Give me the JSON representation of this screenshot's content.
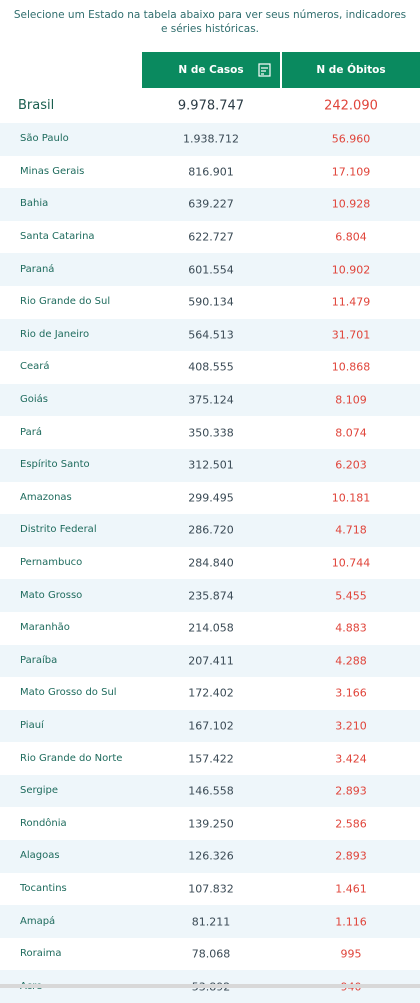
{
  "intro": "Selecione um Estado na tabela abaixo para ver seus números, indicadores e séries históricas.",
  "headers": {
    "casos": "N de Casos",
    "obitos": "N de Óbitos"
  },
  "brasil": {
    "name": "Brasil",
    "casos": "9.978.747",
    "obitos": "242.090"
  },
  "states": [
    {
      "name": "São Paulo",
      "casos": "1.938.712",
      "obitos": "56.960"
    },
    {
      "name": "Minas Gerais",
      "casos": "816.901",
      "obitos": "17.109"
    },
    {
      "name": "Bahia",
      "casos": "639.227",
      "obitos": "10.928"
    },
    {
      "name": "Santa Catarina",
      "casos": "622.727",
      "obitos": "6.804"
    },
    {
      "name": "Paraná",
      "casos": "601.554",
      "obitos": "10.902"
    },
    {
      "name": "Rio Grande do Sul",
      "casos": "590.134",
      "obitos": "11.479"
    },
    {
      "name": "Rio de Janeiro",
      "casos": "564.513",
      "obitos": "31.701"
    },
    {
      "name": "Ceará",
      "casos": "408.555",
      "obitos": "10.868"
    },
    {
      "name": "Goiás",
      "casos": "375.124",
      "obitos": "8.109"
    },
    {
      "name": "Pará",
      "casos": "350.338",
      "obitos": "8.074"
    },
    {
      "name": "Espírito Santo",
      "casos": "312.501",
      "obitos": "6.203"
    },
    {
      "name": "Amazonas",
      "casos": "299.495",
      "obitos": "10.181"
    },
    {
      "name": "Distrito Federal",
      "casos": "286.720",
      "obitos": "4.718"
    },
    {
      "name": "Pernambuco",
      "casos": "284.840",
      "obitos": "10.744"
    },
    {
      "name": "Mato Grosso",
      "casos": "235.874",
      "obitos": "5.455"
    },
    {
      "name": "Maranhão",
      "casos": "214.058",
      "obitos": "4.883"
    },
    {
      "name": "Paraíba",
      "casos": "207.411",
      "obitos": "4.288"
    },
    {
      "name": "Mato Grosso do Sul",
      "casos": "172.402",
      "obitos": "3.166"
    },
    {
      "name": "Piauí",
      "casos": "167.102",
      "obitos": "3.210"
    },
    {
      "name": "Rio Grande do Norte",
      "casos": "157.422",
      "obitos": "3.424"
    },
    {
      "name": "Sergipe",
      "casos": "146.558",
      "obitos": "2.893"
    },
    {
      "name": "Rondônia",
      "casos": "139.250",
      "obitos": "2.586"
    },
    {
      "name": "Alagoas",
      "casos": "126.326",
      "obitos": "2.893"
    },
    {
      "name": "Tocantins",
      "casos": "107.832",
      "obitos": "1.461"
    },
    {
      "name": "Amapá",
      "casos": "81.211",
      "obitos": "1.116"
    },
    {
      "name": "Roraima",
      "casos": "78.068",
      "obitos": "995"
    },
    {
      "name": "Acre",
      "casos": "53.892",
      "obitos": "940"
    }
  ],
  "icons": {
    "filter": "filter-icon"
  },
  "colors": {
    "header_bg": "#0a8a5f",
    "deaths": "#e0443a",
    "row_alt": "#eef6fa"
  }
}
